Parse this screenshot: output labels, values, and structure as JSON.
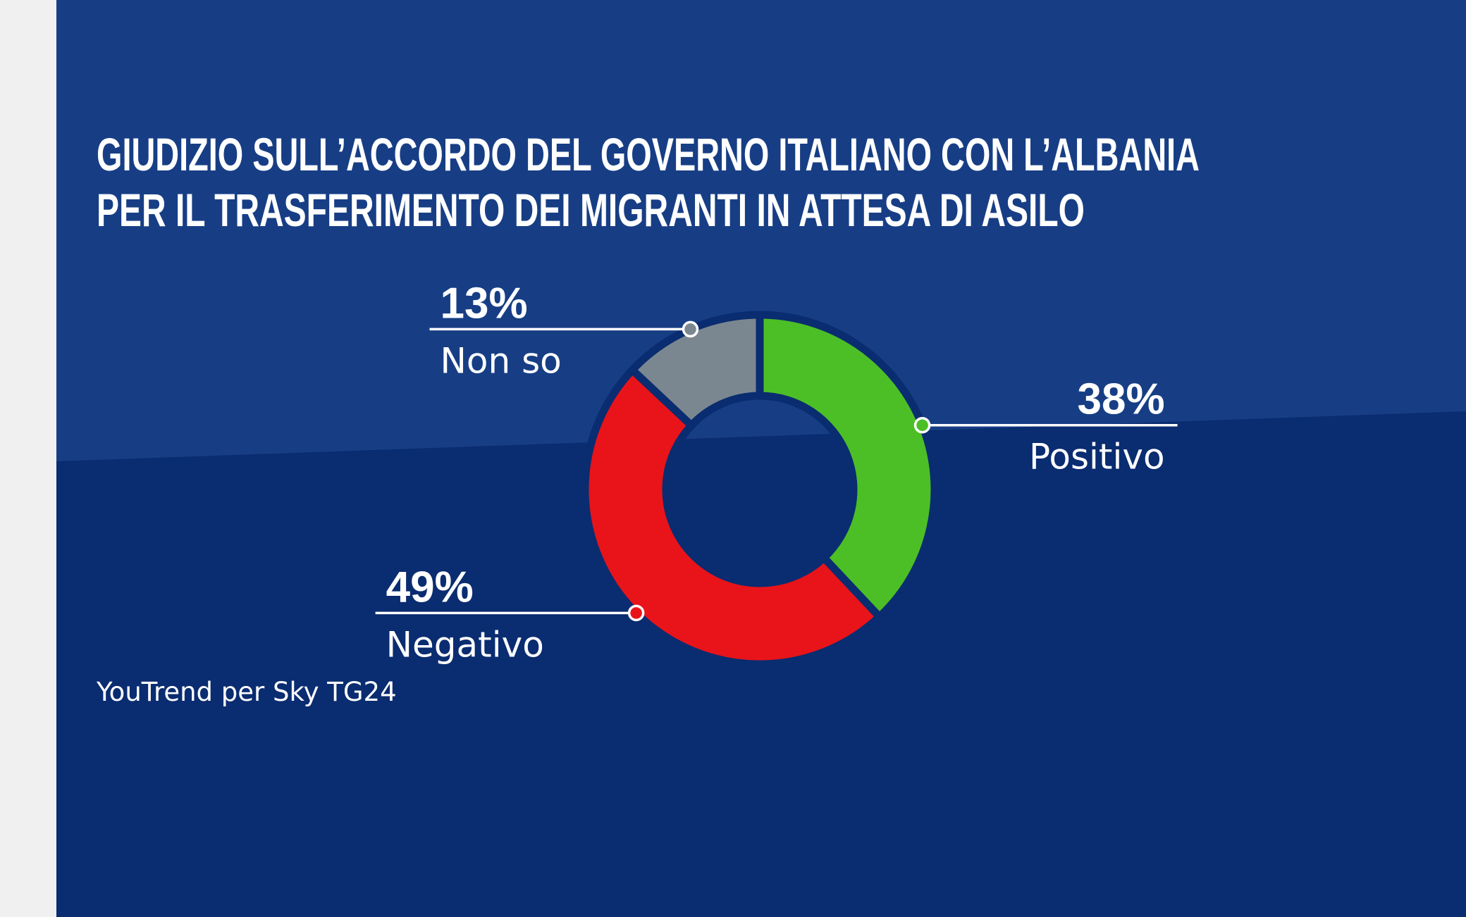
{
  "chart_data": {
    "type": "pie",
    "title": [
      "GIUDIZIO SULL’ACCORDO DEL GOVERNO ITALIANO CON L’ALBANIA",
      "PER IL TRASFERIMENTO DEI MIGRANTI IN ATTESA DI ASILO"
    ],
    "categories": [
      "Positivo",
      "Negativo",
      "Non so"
    ],
    "values": [
      38,
      49,
      13
    ],
    "value_labels": [
      "38%",
      "49%",
      "13%"
    ],
    "colors": [
      "#4cbf26",
      "#e8141a",
      "#7b8790"
    ],
    "source": "YouTrend per Sky TG24"
  }
}
